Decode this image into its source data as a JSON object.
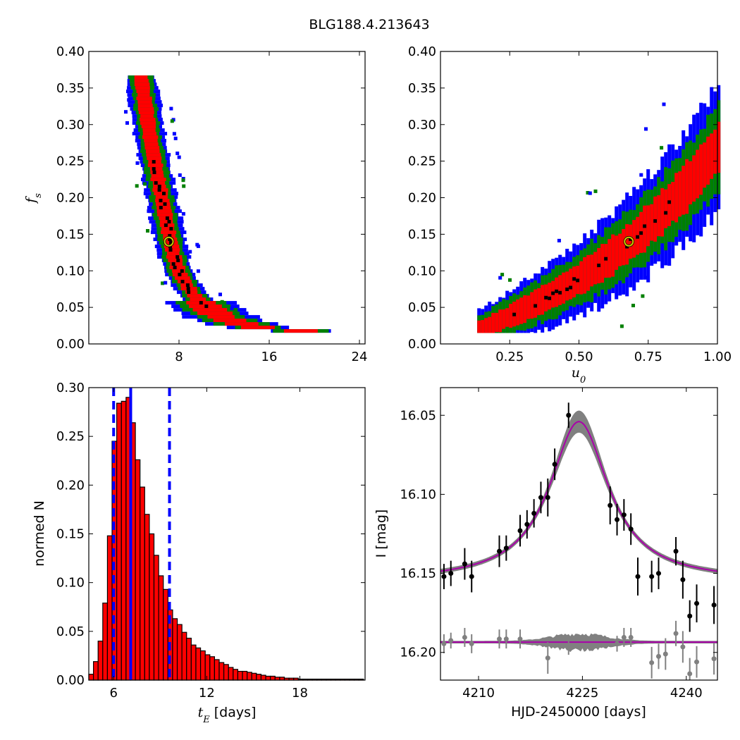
{
  "figure": {
    "title": "BLG188.4.213643"
  },
  "colors": {
    "sigma3": "#0000ff",
    "sigma2": "#008000",
    "sigma1": "#ff0000",
    "best": "#000000",
    "marker": "#c8c800",
    "hist_fill": "#ff0000",
    "median_line": "#0000ff",
    "model": "#aa00aa",
    "band": "#808080",
    "data_points": "#000000",
    "residual_points": "#808080"
  },
  "chart_data": [
    {
      "id": "fs_vs_tE",
      "type": "heatmap",
      "title": "",
      "xlabel": "",
      "ylabel": "f_s",
      "xlim": [
        0,
        24.5
      ],
      "ylim": [
        0.0,
        0.4
      ],
      "xticks": [
        8,
        16,
        24
      ],
      "yticks": [
        0.0,
        0.05,
        0.1,
        0.15,
        0.2,
        0.25,
        0.3,
        0.35,
        0.4
      ],
      "xtick_labels": [
        "8",
        "16",
        "24"
      ],
      "ytick_labels": [
        "0.00",
        "0.05",
        "0.10",
        "0.15",
        "0.20",
        "0.25",
        "0.30",
        "0.35",
        "0.40"
      ],
      "grid": false,
      "regions": [
        "3-sigma (blue)",
        "2-sigma (green)",
        "1-sigma (red)",
        "best fits (black)"
      ],
      "best_fit": {
        "x": 7.1,
        "y": 0.14
      },
      "ridge": [
        {
          "x": 4.6,
          "y": 0.37
        },
        {
          "x": 5.0,
          "y": 0.33
        },
        {
          "x": 5.5,
          "y": 0.28
        },
        {
          "x": 6.0,
          "y": 0.24
        },
        {
          "x": 6.5,
          "y": 0.2
        },
        {
          "x": 7.0,
          "y": 0.16
        },
        {
          "x": 7.5,
          "y": 0.125
        },
        {
          "x": 8.0,
          "y": 0.1
        },
        {
          "x": 9.0,
          "y": 0.075
        },
        {
          "x": 10.0,
          "y": 0.058
        },
        {
          "x": 11.0,
          "y": 0.046
        },
        {
          "x": 12.0,
          "y": 0.037
        },
        {
          "x": 13.5,
          "y": 0.03
        },
        {
          "x": 15.0,
          "y": 0.025
        },
        {
          "x": 17.0,
          "y": 0.022
        },
        {
          "x": 19.0,
          "y": 0.02
        },
        {
          "x": 21.5,
          "y": 0.019
        }
      ]
    },
    {
      "id": "fs_vs_u0",
      "type": "heatmap",
      "title": "",
      "xlabel": "u_0",
      "ylabel": "",
      "xlim": [
        0.0,
        1.0
      ],
      "ylim": [
        0.0,
        0.4
      ],
      "xticks": [
        0.25,
        0.5,
        0.75,
        1.0
      ],
      "yticks": [
        0.0,
        0.05,
        0.1,
        0.15,
        0.2,
        0.25,
        0.3,
        0.35,
        0.4
      ],
      "xtick_labels": [
        "0.25",
        "0.50",
        "0.75",
        "1.00"
      ],
      "ytick_labels": [
        "0.00",
        "0.05",
        "0.10",
        "0.15",
        "0.20",
        "0.25",
        "0.30",
        "0.35",
        "0.40"
      ],
      "grid": false,
      "best_fit": {
        "x": 0.68,
        "y": 0.14
      },
      "ridge": [
        {
          "x": 0.12,
          "y": 0.018
        },
        {
          "x": 0.2,
          "y": 0.03
        },
        {
          "x": 0.3,
          "y": 0.048
        },
        {
          "x": 0.4,
          "y": 0.068
        },
        {
          "x": 0.5,
          "y": 0.09
        },
        {
          "x": 0.6,
          "y": 0.116
        },
        {
          "x": 0.7,
          "y": 0.146
        },
        {
          "x": 0.8,
          "y": 0.182
        },
        {
          "x": 0.9,
          "y": 0.222
        },
        {
          "x": 1.0,
          "y": 0.27
        }
      ]
    },
    {
      "id": "tE_histogram",
      "type": "bar",
      "title": "",
      "xlabel": "t_E [days]",
      "ylabel": "normed N",
      "xlim": [
        4.4,
        22.2
      ],
      "ylim": [
        0.0,
        0.3
      ],
      "xticks": [
        6,
        12,
        18
      ],
      "yticks": [
        0.0,
        0.05,
        0.1,
        0.15,
        0.2,
        0.25,
        0.3
      ],
      "xtick_labels": [
        "6",
        "12",
        "18"
      ],
      "ytick_labels": [
        "0.00",
        "0.05",
        "0.10",
        "0.15",
        "0.20",
        "0.25",
        "0.30"
      ],
      "grid": false,
      "bin_start": 4.4,
      "bin_width": 0.3,
      "values": [
        0.006,
        0.019,
        0.04,
        0.079,
        0.148,
        0.245,
        0.284,
        0.286,
        0.29,
        0.264,
        0.226,
        0.198,
        0.17,
        0.15,
        0.128,
        0.107,
        0.093,
        0.072,
        0.063,
        0.057,
        0.049,
        0.043,
        0.036,
        0.033,
        0.03,
        0.026,
        0.024,
        0.021,
        0.018,
        0.016,
        0.013,
        0.011,
        0.009,
        0.009,
        0.008,
        0.007,
        0.006,
        0.005,
        0.004,
        0.004,
        0.003,
        0.003,
        0.002,
        0.002,
        0.002,
        0.001,
        0.001,
        0.001,
        0.001,
        0.001,
        0.001,
        0.001,
        0.001,
        0.001,
        0.001,
        0.001,
        0.001,
        0.001,
        0.001
      ],
      "median": 7.1,
      "interval": [
        6.0,
        9.6
      ]
    },
    {
      "id": "lightcurve",
      "type": "scatter",
      "title": "",
      "xlabel": "HJD-2450000 [days]",
      "ylabel": "I [mag]",
      "xlim": [
        4204.5,
        4244.5
      ],
      "ylim": [
        16.2175,
        16.0325
      ],
      "inverted_y": true,
      "xticks": [
        4210,
        4225,
        4240
      ],
      "yticks": [
        16.05,
        16.1,
        16.15,
        16.2
      ],
      "xtick_labels": [
        "4210",
        "4225",
        "4240"
      ],
      "ytick_labels": [
        "16.05",
        "16.10",
        "16.15",
        "16.20"
      ],
      "grid": false,
      "model": {
        "t0": 4224.5,
        "peak_mag": 16.054,
        "base_mag": 16.155,
        "baseline_residual_mag": 16.1935
      },
      "points": [
        {
          "x": 4205.0,
          "y": 16.152,
          "err": 0.008
        },
        {
          "x": 4206.0,
          "y": 16.15,
          "err": 0.008
        },
        {
          "x": 4208.0,
          "y": 16.144,
          "err": 0.01
        },
        {
          "x": 4209.0,
          "y": 16.152,
          "err": 0.01
        },
        {
          "x": 4213.0,
          "y": 16.136,
          "err": 0.01
        },
        {
          "x": 4214.0,
          "y": 16.134,
          "err": 0.008
        },
        {
          "x": 4216.0,
          "y": 16.123,
          "err": 0.01
        },
        {
          "x": 4217.0,
          "y": 16.119,
          "err": 0.009
        },
        {
          "x": 4218.0,
          "y": 16.112,
          "err": 0.009
        },
        {
          "x": 4219.0,
          "y": 16.102,
          "err": 0.01
        },
        {
          "x": 4220.0,
          "y": 16.102,
          "err": 0.012
        },
        {
          "x": 4221.0,
          "y": 16.081,
          "err": 0.01
        },
        {
          "x": 4223.0,
          "y": 16.05,
          "err": 0.008
        },
        {
          "x": 4229.0,
          "y": 16.107,
          "err": 0.012
        },
        {
          "x": 4230.0,
          "y": 16.116,
          "err": 0.01
        },
        {
          "x": 4231.0,
          "y": 16.113,
          "err": 0.01
        },
        {
          "x": 4232.0,
          "y": 16.122,
          "err": 0.01
        },
        {
          "x": 4233.0,
          "y": 16.152,
          "err": 0.012
        },
        {
          "x": 4235.0,
          "y": 16.152,
          "err": 0.01
        },
        {
          "x": 4236.0,
          "y": 16.15,
          "err": 0.01
        },
        {
          "x": 4238.5,
          "y": 16.136,
          "err": 0.009
        },
        {
          "x": 4239.5,
          "y": 16.154,
          "err": 0.012
        },
        {
          "x": 4240.5,
          "y": 16.177,
          "err": 0.01
        },
        {
          "x": 4241.5,
          "y": 16.169,
          "err": 0.012
        },
        {
          "x": 4244.0,
          "y": 16.17,
          "err": 0.012
        }
      ],
      "residuals": [
        {
          "x": 4205.0,
          "y": 16.1945,
          "err": 0.006
        },
        {
          "x": 4206.0,
          "y": 16.1925,
          "err": 0.005
        },
        {
          "x": 4208.0,
          "y": 16.1905,
          "err": 0.006
        },
        {
          "x": 4209.0,
          "y": 16.1945,
          "err": 0.006
        },
        {
          "x": 4213.0,
          "y": 16.1915,
          "err": 0.006
        },
        {
          "x": 4214.0,
          "y": 16.1915,
          "err": 0.006
        },
        {
          "x": 4216.0,
          "y": 16.1915,
          "err": 0.006
        },
        {
          "x": 4220.0,
          "y": 16.2035,
          "err": 0.01
        },
        {
          "x": 4223.0,
          "y": 16.1955,
          "err": 0.006
        },
        {
          "x": 4235.0,
          "y": 16.2065,
          "err": 0.01
        },
        {
          "x": 4236.0,
          "y": 16.2025,
          "err": 0.008
        },
        {
          "x": 4237.0,
          "y": 16.201,
          "err": 0.01
        },
        {
          "x": 4238.5,
          "y": 16.188,
          "err": 0.008
        },
        {
          "x": 4239.5,
          "y": 16.1965,
          "err": 0.01
        },
        {
          "x": 4240.5,
          "y": 16.2135,
          "err": 0.01
        },
        {
          "x": 4241.5,
          "y": 16.206,
          "err": 0.01
        },
        {
          "x": 4244.0,
          "y": 16.204,
          "err": 0.01
        },
        {
          "x": 4231.0,
          "y": 16.1905,
          "err": 0.006
        },
        {
          "x": 4232.0,
          "y": 16.1905,
          "err": 0.006
        },
        {
          "x": 4230.0,
          "y": 16.1945,
          "err": 0.005
        }
      ]
    }
  ]
}
